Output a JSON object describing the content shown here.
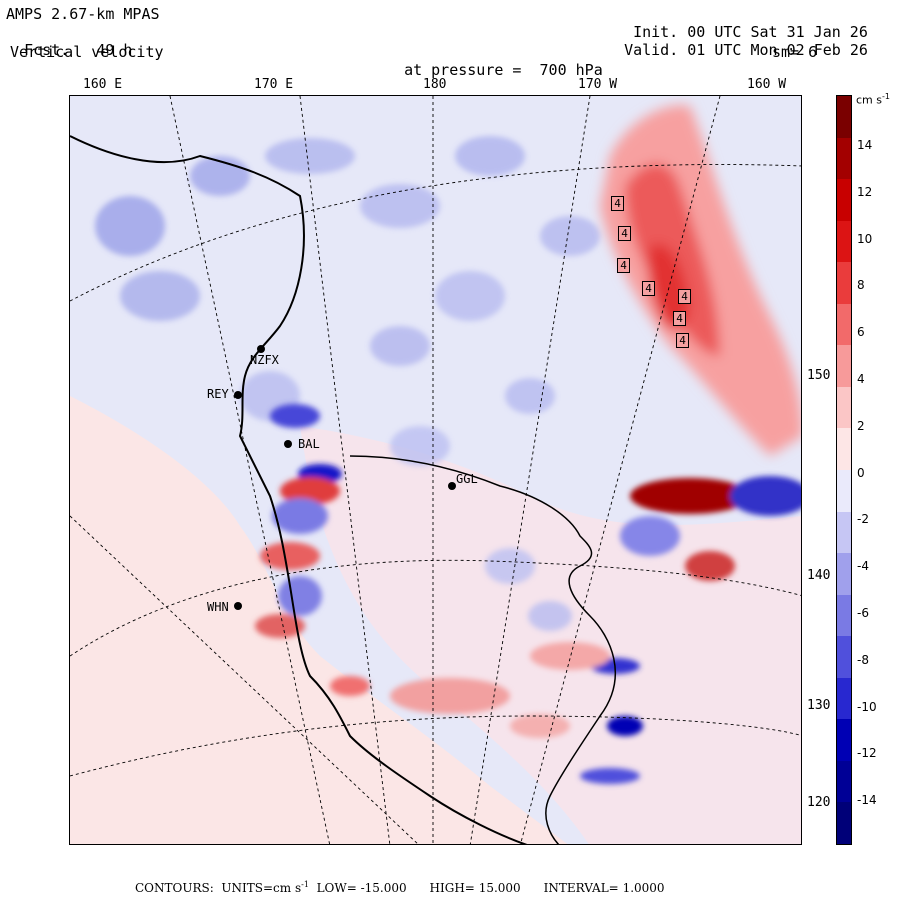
{
  "header": {
    "model": "AMPS 2.67-km MPAS",
    "fcst_label": "Fcst.",
    "fcst_value": "49 h",
    "field": "Vertical velocity",
    "pressure_label": "at pressure =",
    "pressure_value": "700 hPa",
    "init_label": "Init.",
    "init_value": "00 UTC Sat 31 Jan 26",
    "valid_label": "Valid.",
    "valid_value": "01 UTC Mon 02 Feb 26",
    "smoothing": "sm= 6"
  },
  "longitude_labels": [
    "160 E",
    "170 E",
    "180",
    "170 W",
    "160 W"
  ],
  "latitude_labels": [
    "150 W",
    "140 W",
    "130 W",
    "120 W"
  ],
  "stations": [
    "NZFX",
    "REY",
    "BAL",
    "GGL",
    "WHN"
  ],
  "contour_max_labels": [
    "4",
    "4",
    "4",
    "4",
    "4",
    "4",
    "4"
  ],
  "colorbar": {
    "unit": "cm s",
    "unit_exp": "-1",
    "ticks": [
      "14",
      "12",
      "10",
      "8",
      "6",
      "4",
      "2",
      "0",
      "-2",
      "-4",
      "-6",
      "-8",
      "-10",
      "-12",
      "-14"
    ],
    "colors": [
      "#7a0000",
      "#a30000",
      "#c80000",
      "#dc1414",
      "#ea3c3c",
      "#f26a6a",
      "#f79a9a",
      "#fbc6c6",
      "#fde6e6",
      "#eaeafb",
      "#c6c6f4",
      "#a0a0ec",
      "#7a7ae4",
      "#5050dc",
      "#2828d0",
      "#0000b4",
      "#000096",
      "#000078"
    ]
  },
  "footer": {
    "contours_label": "CONTOURS:",
    "units_label": "UNITS=cm s",
    "units_exp": "-1",
    "low_label": "LOW=",
    "low_value": "-15.000",
    "high_label": "HIGH=",
    "high_value": "15.000",
    "interval_label": "INTERVAL=",
    "interval_value": "1.0000"
  }
}
